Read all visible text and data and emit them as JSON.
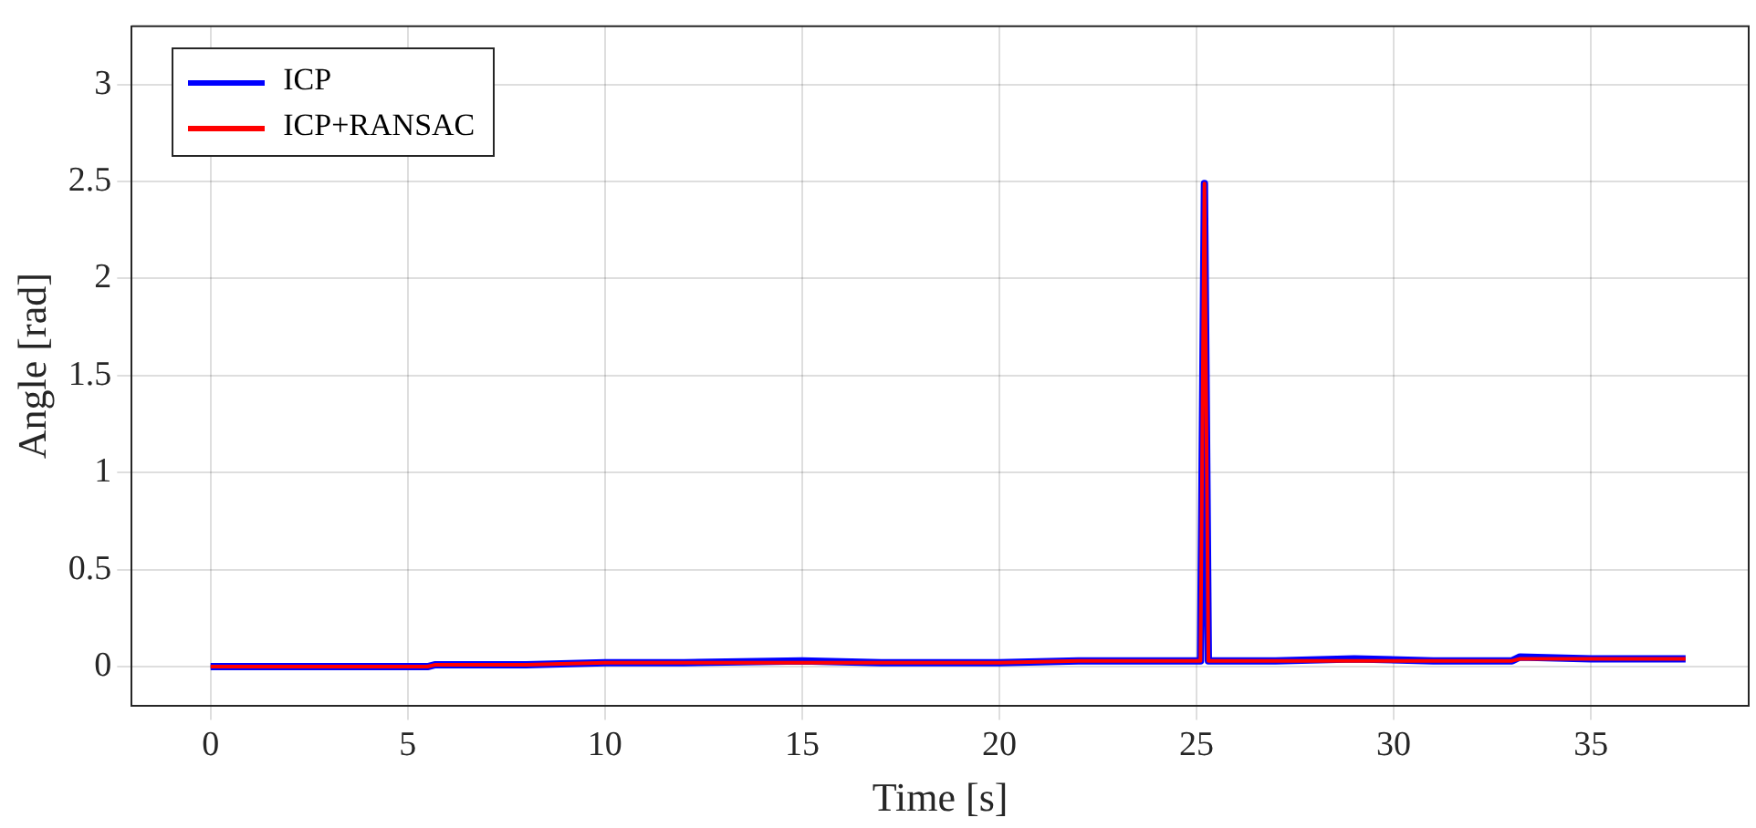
{
  "chart_data": {
    "type": "line",
    "xlabel": "Time [s]",
    "ylabel": "Angle [rad]",
    "xlim": [
      -2,
      39
    ],
    "xticks": [
      0,
      5,
      10,
      15,
      20,
      25,
      30,
      35
    ],
    "ylim": [
      -0.2,
      3.3
    ],
    "yticks": [
      0,
      0.5,
      1,
      1.5,
      2,
      2.5,
      3
    ],
    "grid": true,
    "legend": "top left",
    "marker": "none",
    "line_style": "solid",
    "series": [
      {
        "name": "ICP",
        "color": "#0000ff",
        "x": [
          0,
          3,
          5.5,
          5.7,
          8,
          10,
          12,
          15,
          17,
          20,
          22,
          25.1,
          25.2,
          25.3,
          27,
          29,
          31,
          33,
          33.2,
          35,
          37.4
        ],
        "values": [
          0,
          0,
          0,
          0.01,
          0.01,
          0.02,
          0.02,
          0.03,
          0.02,
          0.02,
          0.03,
          0.03,
          2.49,
          0.03,
          0.03,
          0.04,
          0.03,
          0.03,
          0.05,
          0.04,
          0.04
        ]
      },
      {
        "name": "ICP+RANSAC",
        "color": "#ff0000",
        "x": [
          0,
          3,
          5.5,
          5.7,
          8,
          10,
          12,
          15,
          17,
          20,
          22,
          25.1,
          25.2,
          25.3,
          27,
          29,
          31,
          33,
          33.2,
          35,
          37.4
        ],
        "values": [
          0,
          0,
          0,
          0.01,
          0.01,
          0.02,
          0.02,
          0.02,
          0.02,
          0.02,
          0.03,
          0.03,
          2.49,
          0.03,
          0.03,
          0.03,
          0.03,
          0.03,
          0.04,
          0.04,
          0.04
        ]
      }
    ]
  }
}
